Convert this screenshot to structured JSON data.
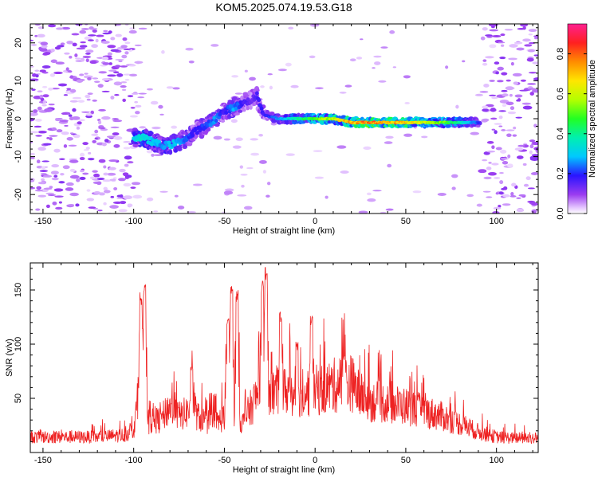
{
  "title": "KOM5.2025.074.19.53.G18",
  "chart_data": [
    {
      "type": "heatmap",
      "name": "spectrogram",
      "xlabel": "Height of straight line (km)",
      "ylabel": "Frequency (Hz)",
      "xlim": [
        -157,
        123
      ],
      "ylim": [
        -25,
        25
      ],
      "xticks": [
        -150,
        -100,
        -50,
        0,
        50,
        100
      ],
      "yticks": [
        -20,
        -10,
        0,
        10,
        20
      ],
      "colorbar": {
        "label": "Normalized spectral amplitude",
        "ticks": [
          0.0,
          0.2,
          0.4,
          0.6,
          0.8
        ],
        "tick_labels": [
          "0.0",
          "0.2",
          "0.4",
          "0.6",
          "0.8"
        ],
        "range": [
          0,
          0.95
        ]
      },
      "ridge": {
        "x": [
          -100,
          -95,
          -90,
          -85,
          -80,
          -75,
          -70,
          -65,
          -60,
          -55,
          -50,
          -45,
          -40,
          -35,
          -32,
          -28,
          -20,
          -10,
          0,
          10,
          20,
          30,
          40,
          50,
          60,
          70,
          80,
          90
        ],
        "freq": [
          -5,
          -5,
          -6,
          -7,
          -7,
          -6,
          -5,
          -3,
          -2,
          0,
          2,
          3,
          4,
          5,
          6,
          1,
          0,
          0,
          0,
          0,
          -1,
          -1,
          -1,
          -1,
          -1,
          -1,
          -1,
          -1
        ],
        "amplitude": [
          0.35,
          0.4,
          0.35,
          0.3,
          0.35,
          0.3,
          0.25,
          0.2,
          0.25,
          0.3,
          0.2,
          0.3,
          0.2,
          0.15,
          0.2,
          0.2,
          0.3,
          0.45,
          0.6,
          0.7,
          0.85,
          0.9,
          0.85,
          0.8,
          0.7,
          0.6,
          0.45,
          0.25
        ]
      }
    },
    {
      "type": "line",
      "name": "snr",
      "xlabel": "Height of straight line (km)",
      "ylabel": "SNR (v/v)",
      "xlim": [
        -157,
        123
      ],
      "ylim": [
        0,
        175
      ],
      "xticks": [
        -150,
        -100,
        -50,
        0,
        50,
        100
      ],
      "yticks": [
        50,
        100,
        150
      ],
      "color": "#ee2222",
      "envelope": {
        "x": [
          -157,
          -120,
          -105,
          -100,
          -97,
          -95,
          -93,
          -90,
          -85,
          -80,
          -75,
          -70,
          -67,
          -65,
          -60,
          -55,
          -50,
          -47,
          -45,
          -43,
          -40,
          -35,
          -31,
          -28,
          -26,
          -22,
          -18,
          -14,
          -10,
          -6,
          -2,
          0,
          5,
          10,
          15,
          20,
          25,
          30,
          40,
          50,
          60,
          70,
          80,
          90,
          100,
          110,
          123
        ],
        "base": [
          15,
          15,
          17,
          22,
          60,
          25,
          30,
          30,
          32,
          45,
          35,
          40,
          50,
          35,
          30,
          28,
          35,
          70,
          35,
          40,
          28,
          45,
          60,
          55,
          50,
          60,
          58,
          62,
          55,
          60,
          58,
          60,
          62,
          65,
          66,
          68,
          55,
          50,
          48,
          45,
          40,
          35,
          28,
          20,
          15,
          14,
          14
        ],
        "peaks": [
          [
            -96,
            148
          ],
          [
            -94,
            155
          ],
          [
            -68,
            80
          ],
          [
            -48,
            128
          ],
          [
            -46,
            155
          ],
          [
            -43,
            150
          ],
          [
            -29,
            160
          ],
          [
            -27,
            172
          ],
          [
            -19,
            130
          ],
          [
            -10,
            102
          ],
          [
            -2,
            126
          ],
          [
            16,
            90
          ]
        ]
      }
    }
  ]
}
